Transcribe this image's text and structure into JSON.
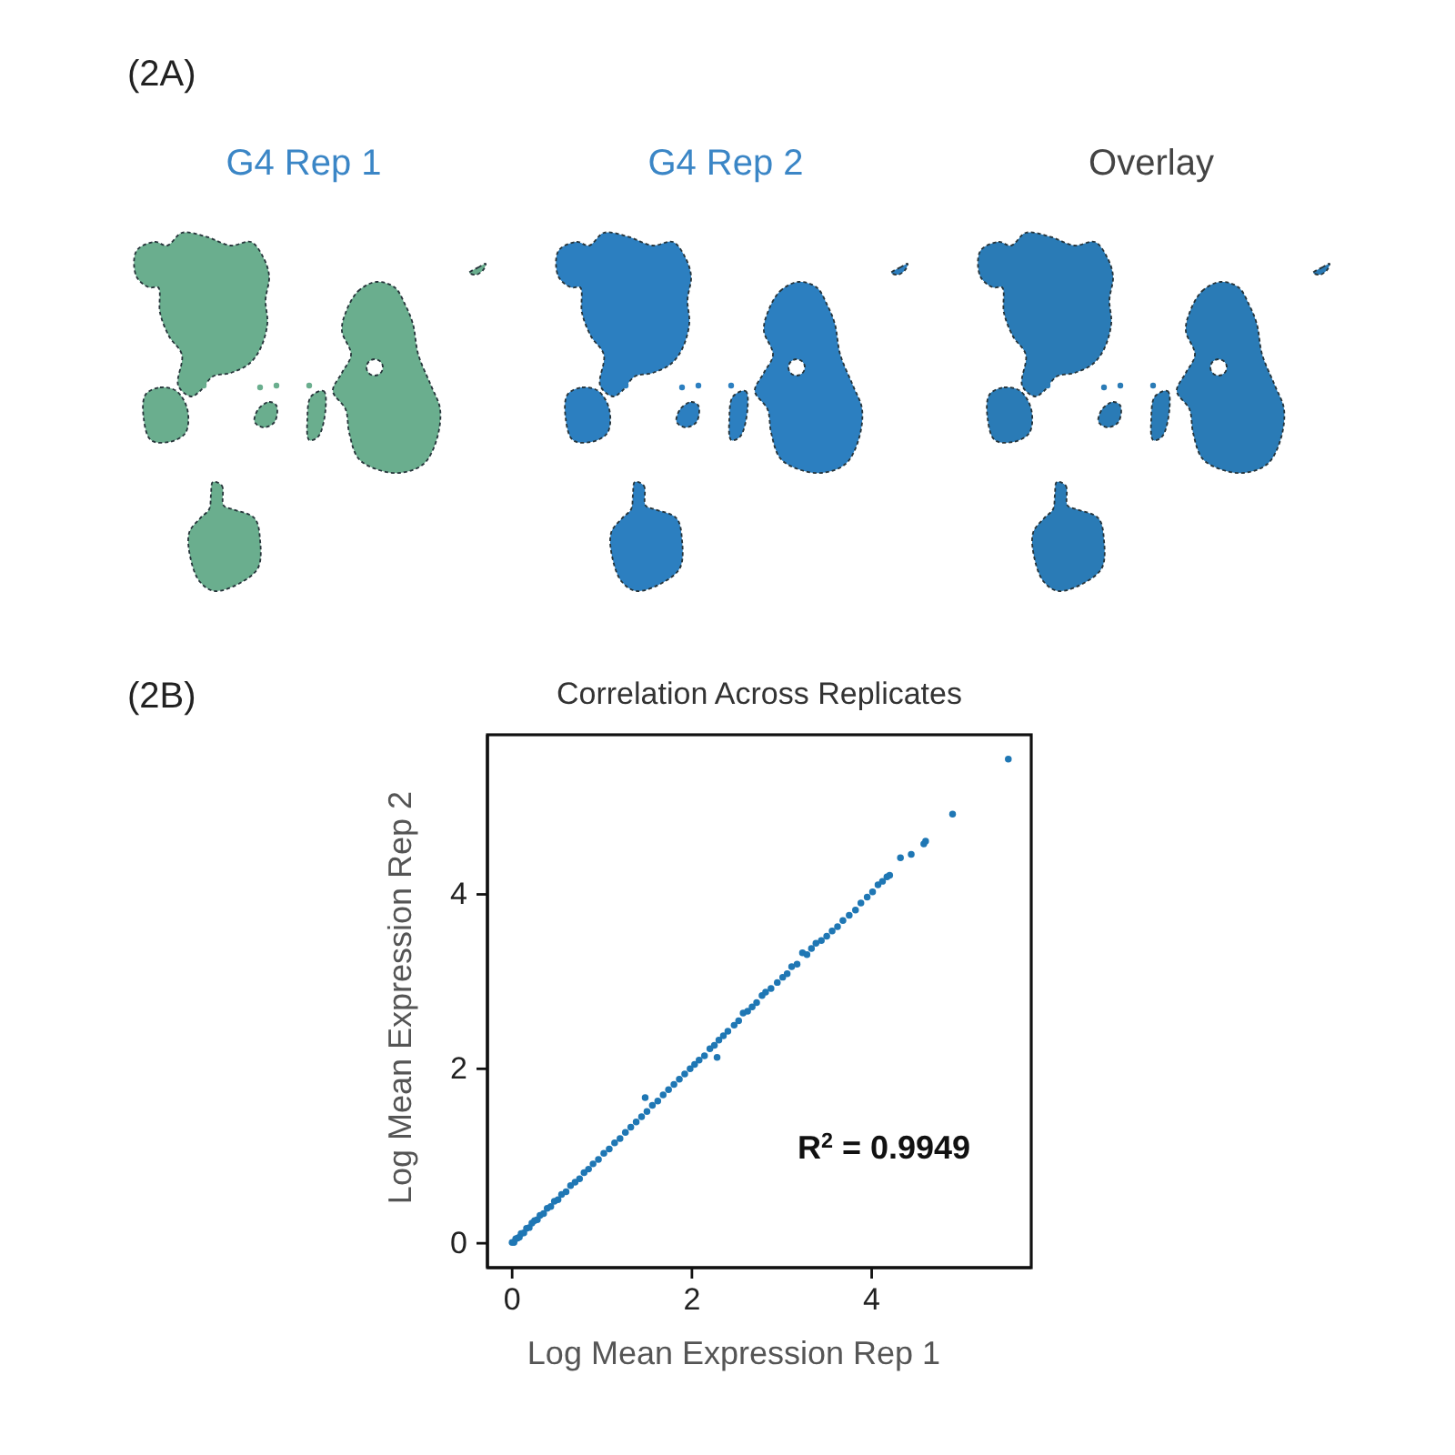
{
  "chart_data": [
    {
      "type": "other",
      "title": "G4 Rep 1",
      "annotations": [
        "(2A)"
      ]
    },
    {
      "type": "other",
      "title": "G4 Rep 2"
    },
    {
      "type": "other",
      "title": "Overlay"
    },
    {
      "type": "scatter",
      "title": "Correlation Across Replicates",
      "xlabel": "Log Mean Expression Rep 1",
      "ylabel": "Log Mean Expression Rep 2",
      "annotations": [
        "(2B)",
        "R$^{2}$ = 0.9949"
      ],
      "color": "#1f77b4",
      "marker": "circle",
      "xlim": [
        -0.275,
        5.775
      ],
      "ylim": [
        -0.28,
        5.83
      ],
      "xticks": [
        0,
        2,
        4
      ],
      "yticks": [
        0,
        2,
        4
      ],
      "x": [
        0.0,
        0.02,
        0.04,
        0.06,
        0.08,
        0.1,
        0.13,
        0.16,
        0.19,
        0.22,
        0.25,
        0.28,
        0.31,
        0.35,
        0.39,
        0.43,
        0.47,
        0.51,
        0.55,
        0.6,
        0.65,
        0.7,
        0.75,
        0.8,
        0.85,
        0.9,
        0.96,
        1.02,
        1.08,
        1.14,
        1.2,
        1.26,
        1.32,
        1.38,
        1.44,
        1.48,
        1.5,
        1.56,
        1.62,
        1.68,
        1.74,
        1.8,
        1.86,
        1.92,
        1.98,
        2.03,
        2.08,
        2.14,
        2.2,
        2.25,
        2.28,
        2.3,
        2.35,
        2.4,
        2.47,
        2.52,
        2.57,
        2.62,
        2.67,
        2.72,
        2.78,
        2.82,
        2.88,
        2.95,
        3.01,
        3.06,
        3.11,
        3.17,
        3.23,
        3.28,
        3.33,
        3.38,
        3.44,
        3.5,
        3.56,
        3.62,
        3.68,
        3.75,
        3.82,
        3.88,
        3.95,
        4.01,
        4.07,
        4.12,
        4.17,
        4.2,
        4.32,
        4.44,
        4.58,
        4.6,
        4.9,
        5.52
      ],
      "values": [
        0.01,
        0.01,
        0.05,
        0.06,
        0.07,
        0.11,
        0.12,
        0.17,
        0.18,
        0.23,
        0.26,
        0.27,
        0.32,
        0.34,
        0.4,
        0.42,
        0.48,
        0.5,
        0.56,
        0.59,
        0.66,
        0.7,
        0.74,
        0.81,
        0.85,
        0.91,
        0.96,
        1.03,
        1.08,
        1.15,
        1.2,
        1.27,
        1.33,
        1.39,
        1.45,
        1.67,
        1.51,
        1.58,
        1.63,
        1.7,
        1.76,
        1.82,
        1.88,
        1.94,
        2.0,
        2.05,
        2.1,
        2.15,
        2.23,
        2.27,
        2.13,
        2.33,
        2.38,
        2.43,
        2.5,
        2.55,
        2.64,
        2.66,
        2.71,
        2.76,
        2.84,
        2.88,
        2.92,
        2.99,
        3.05,
        3.09,
        3.17,
        3.2,
        3.33,
        3.31,
        3.38,
        3.44,
        3.47,
        3.52,
        3.58,
        3.63,
        3.7,
        3.76,
        3.82,
        3.9,
        3.97,
        4.03,
        4.11,
        4.15,
        4.2,
        4.22,
        4.42,
        4.46,
        4.58,
        4.61,
        4.92,
        5.55
      ]
    }
  ]
}
